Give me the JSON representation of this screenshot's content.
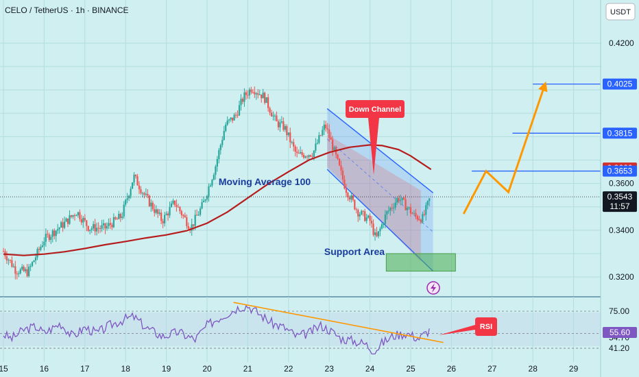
{
  "header": {
    "symbol_title": "CELO / TetherUS · 1h · BINANCE",
    "currency": "USDT"
  },
  "colors": {
    "background": "#cfeff0",
    "grid": "#b3dde0",
    "candle_up": "#26a69a",
    "candle_down": "#ef5350",
    "moving_average": "#b71c1c",
    "channel": "#2962ff",
    "projection": "#ff9800",
    "support": "#4caf50",
    "rsi_line": "#7e57c2",
    "callout": "#f23645",
    "price_tag_blue": "#2962ff",
    "price_tag_red": "#d32f2f",
    "price_tag_dark": "#131722"
  },
  "icons": {
    "alert": "lightning-icon"
  },
  "chart_data": {
    "type": "candlestick",
    "symbol": "CELO / TetherUS",
    "interval": "1h",
    "exchange": "BINANCE",
    "x_axis_ticks": [
      "15",
      "16",
      "17",
      "18",
      "19",
      "20",
      "21",
      "22",
      "23",
      "24",
      "25",
      "26",
      "27",
      "28",
      "29"
    ],
    "price_axis_ticks": [
      "0.4200",
      "0.3600",
      "0.3400",
      "0.3200"
    ],
    "ylim": [
      0.313,
      0.432
    ],
    "price_tags": [
      {
        "label": "0.4025",
        "price": 0.4025,
        "style": "blue"
      },
      {
        "label": "0.3815",
        "price": 0.3815,
        "style": "blue"
      },
      {
        "label": "0.3666",
        "price": 0.3666,
        "style": "red"
      },
      {
        "label": "0.3653",
        "price": 0.3653,
        "style": "blue"
      },
      {
        "label": "0.3543",
        "price": 0.3543,
        "style": "dark",
        "countdown": "11:57"
      }
    ],
    "last_price": 0.3543,
    "horizontal_levels": [
      {
        "price": 0.4025,
        "from_day": 28.0
      },
      {
        "price": 0.3815,
        "from_day": 27.5
      },
      {
        "price": 0.3653,
        "from_day": 26.5
      }
    ],
    "ohlc_anchors": [
      [
        15.0,
        0.331
      ],
      [
        15.3,
        0.323
      ],
      [
        15.6,
        0.322
      ],
      [
        16.0,
        0.336
      ],
      [
        16.5,
        0.343
      ],
      [
        16.8,
        0.348
      ],
      [
        17.1,
        0.341
      ],
      [
        17.5,
        0.341
      ],
      [
        17.9,
        0.346
      ],
      [
        18.2,
        0.363
      ],
      [
        18.5,
        0.354
      ],
      [
        18.9,
        0.344
      ],
      [
        19.2,
        0.352
      ],
      [
        19.6,
        0.341
      ],
      [
        19.9,
        0.351
      ],
      [
        20.2,
        0.367
      ],
      [
        20.45,
        0.385
      ],
      [
        20.7,
        0.389
      ],
      [
        20.9,
        0.397
      ],
      [
        21.1,
        0.401
      ],
      [
        21.4,
        0.397
      ],
      [
        21.7,
        0.386
      ],
      [
        21.9,
        0.384
      ],
      [
        22.2,
        0.372
      ],
      [
        22.6,
        0.373
      ],
      [
        22.9,
        0.385
      ],
      [
        23.1,
        0.375
      ],
      [
        23.4,
        0.358
      ],
      [
        23.7,
        0.348
      ],
      [
        24.0,
        0.344
      ],
      [
        24.15,
        0.336
      ],
      [
        24.4,
        0.347
      ],
      [
        24.7,
        0.354
      ],
      [
        24.9,
        0.35
      ],
      [
        25.1,
        0.346
      ],
      [
        25.3,
        0.345
      ],
      [
        25.5,
        0.355
      ]
    ],
    "moving_average_100": [
      [
        15.0,
        0.3298
      ],
      [
        15.5,
        0.3292
      ],
      [
        16.0,
        0.3298
      ],
      [
        16.5,
        0.3308
      ],
      [
        17.0,
        0.3322
      ],
      [
        17.5,
        0.3338
      ],
      [
        18.0,
        0.3352
      ],
      [
        18.5,
        0.3367
      ],
      [
        19.0,
        0.338
      ],
      [
        19.5,
        0.3398
      ],
      [
        20.0,
        0.343
      ],
      [
        20.5,
        0.3478
      ],
      [
        21.0,
        0.3538
      ],
      [
        21.5,
        0.3598
      ],
      [
        22.0,
        0.365
      ],
      [
        22.5,
        0.37
      ],
      [
        23.0,
        0.3733
      ],
      [
        23.5,
        0.3755
      ],
      [
        24.0,
        0.3765
      ],
      [
        24.3,
        0.3762
      ],
      [
        24.7,
        0.3745
      ],
      [
        25.0,
        0.3718
      ],
      [
        25.5,
        0.366
      ]
    ],
    "down_channel": {
      "upper": [
        [
          22.95,
          0.392
        ],
        [
          25.55,
          0.356
        ]
      ],
      "lower": [
        [
          22.95,
          0.366
        ],
        [
          25.55,
          0.3225
        ]
      ]
    },
    "support_area": {
      "from_day": 24.4,
      "to_day": 26.1,
      "low": 0.3225,
      "high": 0.33
    },
    "projection_path": [
      [
        26.3,
        0.347
      ],
      [
        26.85,
        0.3653
      ],
      [
        27.4,
        0.3563
      ],
      [
        28.3,
        0.4025
      ]
    ],
    "rsi": {
      "ticks": [
        "75.00",
        "54.70",
        "41.20"
      ],
      "current": "55.60",
      "levels": [
        75.0,
        54.7,
        41.2
      ],
      "ylim": [
        35,
        85
      ],
      "anchors": [
        [
          15.0,
          54
        ],
        [
          15.2,
          50
        ],
        [
          15.5,
          58
        ],
        [
          15.8,
          61
        ],
        [
          16.0,
          55
        ],
        [
          16.4,
          64
        ],
        [
          16.7,
          52
        ],
        [
          17.0,
          60
        ],
        [
          17.3,
          55
        ],
        [
          17.6,
          62
        ],
        [
          18.0,
          68
        ],
        [
          18.2,
          70
        ],
        [
          18.5,
          60
        ],
        [
          18.9,
          52
        ],
        [
          19.3,
          56
        ],
        [
          19.7,
          49
        ],
        [
          20.0,
          62
        ],
        [
          20.3,
          69
        ],
        [
          20.55,
          74
        ],
        [
          20.8,
          79
        ],
        [
          21.0,
          80
        ],
        [
          21.3,
          72
        ],
        [
          21.6,
          64
        ],
        [
          21.9,
          60
        ],
        [
          22.2,
          52
        ],
        [
          22.5,
          55
        ],
        [
          22.8,
          62
        ],
        [
          23.0,
          58
        ],
        [
          23.3,
          50
        ],
        [
          23.6,
          48
        ],
        [
          23.9,
          45
        ],
        [
          24.1,
          38
        ],
        [
          24.3,
          46
        ],
        [
          24.6,
          53
        ],
        [
          24.9,
          55
        ],
        [
          25.2,
          50
        ],
        [
          25.5,
          59
        ]
      ],
      "trendline": [
        [
          20.65,
          83
        ],
        [
          25.8,
          46.5
        ]
      ]
    }
  },
  "annotations": {
    "moving_average_label": "Moving Average 100",
    "down_channel_label": "Down Channel",
    "support_area_label": "Support Area",
    "rsi_label": "RSI"
  }
}
